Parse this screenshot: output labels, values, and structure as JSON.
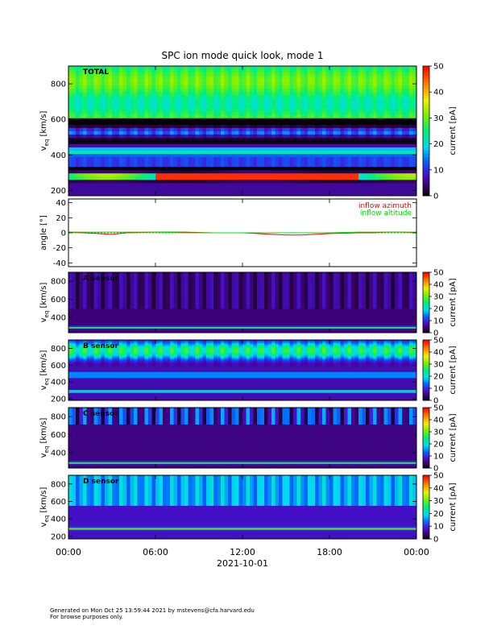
{
  "chart_data": [
    {
      "type": "heatmap",
      "title": "SPC ion mode quick look, mode 1",
      "panel_label": "TOTAL",
      "ylabel": "v_eq [km/s]",
      "yticks": [
        200,
        400,
        600,
        800
      ],
      "ylim": [
        170,
        900
      ],
      "colorbar": {
        "label": "current [pA]",
        "ticks": [
          0,
          10,
          20,
          30,
          40,
          50
        ],
        "range": [
          0,
          50
        ]
      }
    },
    {
      "type": "line",
      "ylabel": "angle [°]",
      "yticks": [
        -40,
        -20,
        0,
        20,
        40
      ],
      "ylim": [
        -45,
        45
      ],
      "series": [
        {
          "name": "inflow azimuth",
          "color": "#ff0000",
          "x_hours": [
            0,
            1,
            2,
            3,
            4,
            6,
            8,
            10,
            12,
            13,
            14,
            15,
            16,
            17,
            18,
            20,
            21,
            22,
            23,
            24
          ],
          "values": [
            1,
            0,
            -1,
            -2,
            0,
            1,
            1,
            0,
            0,
            -1,
            -2,
            -3,
            -3,
            -2,
            -1,
            0,
            0,
            1,
            1,
            0
          ]
        },
        {
          "name": "inflow altitude",
          "color": "#00dd00",
          "x_hours": [
            0,
            2,
            4,
            6,
            8,
            10,
            12,
            14,
            16,
            18,
            20,
            22,
            24
          ],
          "values": [
            1,
            1,
            1,
            1,
            0,
            0,
            0,
            0,
            0,
            0,
            1,
            1,
            1
          ]
        }
      ]
    },
    {
      "type": "heatmap",
      "panel_label": "A sensor",
      "ylabel": "v_eq [km/s]",
      "yticks": [
        200,
        400,
        600,
        800
      ],
      "ylim": [
        230,
        900
      ],
      "colorbar": {
        "label": "current [pA]",
        "ticks": [
          0,
          10,
          20,
          30,
          40,
          50
        ],
        "range": [
          0,
          50
        ]
      }
    },
    {
      "type": "heatmap",
      "panel_label": "B sensor",
      "ylabel": "v_eq [km/s]",
      "yticks": [
        200,
        400,
        600,
        800
      ],
      "ylim": [
        180,
        900
      ],
      "colorbar": {
        "label": "current [pA]",
        "ticks": [
          0,
          10,
          20,
          30,
          40,
          50
        ],
        "range": [
          0,
          50
        ]
      }
    },
    {
      "type": "heatmap",
      "panel_label": "C sensor",
      "ylabel": "v_eq [km/s]",
      "yticks": [
        200,
        400,
        600,
        800
      ],
      "ylim": [
        230,
        900
      ],
      "colorbar": {
        "label": "current [pA]",
        "ticks": [
          0,
          10,
          20,
          30,
          40,
          50
        ],
        "range": [
          0,
          50
        ]
      }
    },
    {
      "type": "heatmap",
      "panel_label": "D sensor",
      "ylabel": "v_eq [km/s]",
      "yticks": [
        200,
        400,
        600,
        800
      ],
      "ylim": [
        170,
        900
      ],
      "colorbar": {
        "label": "current [pA]",
        "ticks": [
          0,
          10,
          20,
          30,
          40,
          50
        ],
        "range": [
          0,
          50
        ]
      }
    }
  ],
  "x_axis": {
    "ticks": [
      "00:00",
      "06:00",
      "12:00",
      "18:00",
      "00:00"
    ],
    "tick_hours": [
      0,
      6,
      12,
      18,
      24
    ],
    "date_label": "2021-10-01"
  },
  "footer": {
    "line1": "Generated on Mon Oct 25 13:59:44 2021 by mstevens@cfa.harvard.edu",
    "line2": "For browse purposes only."
  }
}
